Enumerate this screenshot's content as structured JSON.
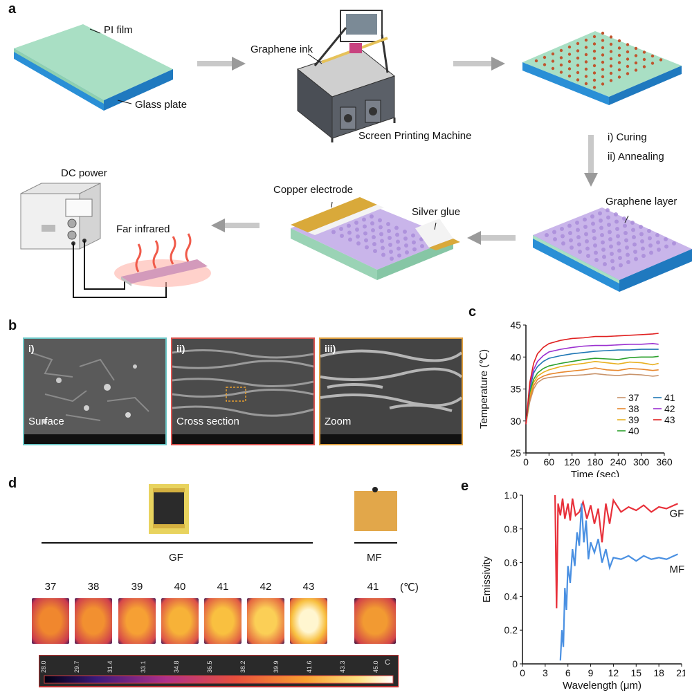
{
  "panels": {
    "a": "a",
    "b": "b",
    "c": "c",
    "d": "d",
    "e": "e"
  },
  "panel_a": {
    "pi_film": "PI film",
    "glass_plate": "Glass plate",
    "graphene_ink": "Graphene ink",
    "machine": "Screen Printing Machine",
    "curing": "i) Curing",
    "annealing": "ii) Annealing",
    "graphene_layer": "Graphene layer",
    "copper_electrode": "Copper electrode",
    "silver_glue": "Silver glue",
    "dc_power": "DC power",
    "far_infrared": "Far infrared"
  },
  "panel_b": {
    "images": [
      {
        "tag": "i)",
        "caption": "Surface",
        "frame": "#6cc7c7"
      },
      {
        "tag": "ii)",
        "caption": "Cross section",
        "frame": "#d9534f"
      },
      {
        "tag": "iii)",
        "caption": "Zoom",
        "frame": "#e0a040"
      }
    ]
  },
  "panel_d": {
    "gf_label": "GF",
    "mf_label": "MF",
    "unit": "(℃)",
    "gf_temps": [
      "37",
      "38",
      "39",
      "40",
      "41",
      "42",
      "43"
    ],
    "mf_temp": "41",
    "colorbar_ticks": [
      "28.0",
      "29.7",
      "31.4",
      "33.1",
      "34.8",
      "36.5",
      "38.2",
      "39.9",
      "41.6",
      "43.3",
      "45.0"
    ],
    "colorbar_unit": "C"
  },
  "chart_data": [
    {
      "type": "line",
      "panel": "c",
      "xlabel": "Time (sec)",
      "ylabel": "Temperature (℃)",
      "xlim": [
        0,
        360
      ],
      "ylim": [
        25,
        45
      ],
      "xticks": [
        "0",
        "60",
        "120",
        "180",
        "240",
        "300",
        "360"
      ],
      "yticks": [
        "25",
        "30",
        "35",
        "40",
        "45"
      ],
      "grid": false,
      "legend": "right",
      "series": [
        {
          "name": "37",
          "color": "#c8936a",
          "x": [
            0,
            10,
            20,
            30,
            45,
            60,
            90,
            120,
            150,
            180,
            210,
            240,
            270,
            300,
            330,
            345
          ],
          "values": [
            29.5,
            33,
            35,
            36,
            36.6,
            36.8,
            37,
            37.1,
            37.2,
            37.4,
            37.2,
            37.1,
            37.3,
            37.2,
            37,
            37.1
          ]
        },
        {
          "name": "38",
          "color": "#e8872c",
          "x": [
            0,
            10,
            20,
            30,
            45,
            60,
            90,
            120,
            150,
            180,
            210,
            240,
            270,
            300,
            330,
            345
          ],
          "values": [
            29.5,
            33.5,
            35.5,
            36.5,
            37,
            37.3,
            37.6,
            37.8,
            38,
            38.3,
            38,
            37.9,
            38.2,
            38.1,
            37.9,
            38
          ]
        },
        {
          "name": "39",
          "color": "#e8b020",
          "x": [
            0,
            10,
            20,
            30,
            45,
            60,
            90,
            120,
            150,
            180,
            210,
            240,
            270,
            300,
            330,
            345
          ],
          "values": [
            29.5,
            34,
            36,
            37,
            37.6,
            38,
            38.5,
            38.8,
            39,
            39.3,
            39.1,
            38.9,
            39.2,
            39.1,
            38.8,
            39
          ]
        },
        {
          "name": "40",
          "color": "#2ca02c",
          "x": [
            0,
            10,
            20,
            30,
            45,
            60,
            90,
            120,
            150,
            180,
            210,
            240,
            270,
            300,
            330,
            345
          ],
          "values": [
            29.5,
            34.5,
            36.5,
            37.5,
            38.2,
            38.6,
            39,
            39.3,
            39.6,
            39.8,
            39.7,
            39.6,
            39.9,
            40,
            40,
            40.1
          ]
        },
        {
          "name": "41",
          "color": "#1f77b4",
          "x": [
            0,
            10,
            20,
            30,
            45,
            60,
            90,
            120,
            150,
            180,
            210,
            240,
            270,
            300,
            330,
            345
          ],
          "values": [
            29.5,
            35,
            37.5,
            38.5,
            39.3,
            39.8,
            40.2,
            40.5,
            40.7,
            40.9,
            41,
            41.1,
            41.1,
            41.2,
            41.2,
            41.2
          ]
        },
        {
          "name": "42",
          "color": "#9b30d0",
          "x": [
            0,
            10,
            20,
            30,
            45,
            60,
            90,
            120,
            150,
            180,
            210,
            240,
            270,
            300,
            330,
            345
          ],
          "values": [
            29.5,
            35.5,
            38,
            39.3,
            40.2,
            40.8,
            41.2,
            41.5,
            41.7,
            41.8,
            41.8,
            41.9,
            42,
            42,
            42.1,
            42
          ]
        },
        {
          "name": "43",
          "color": "#e02020",
          "x": [
            0,
            10,
            20,
            30,
            45,
            60,
            90,
            120,
            150,
            180,
            210,
            240,
            270,
            300,
            330,
            345
          ],
          "values": [
            29.5,
            36,
            39,
            40.5,
            41.5,
            42.1,
            42.6,
            42.9,
            43,
            43.2,
            43.2,
            43.3,
            43.4,
            43.5,
            43.6,
            43.7
          ]
        }
      ]
    },
    {
      "type": "line",
      "panel": "e",
      "xlabel": "Wavelength (μm)",
      "ylabel": "Emissivity",
      "xlim": [
        0,
        21
      ],
      "ylim": [
        0,
        1
      ],
      "xticks": [
        "0",
        "3",
        "6",
        "9",
        "12",
        "15",
        "18",
        "21"
      ],
      "yticks": [
        "0",
        "0.2",
        "0.4",
        "0.6",
        "0.8",
        "1.0"
      ],
      "grid": false,
      "series": [
        {
          "name": "GF",
          "color": "#e8303a",
          "x": [
            4.3,
            4.5,
            4.7,
            5.0,
            5.3,
            5.6,
            6.0,
            6.3,
            6.6,
            7.0,
            7.5,
            8.0,
            8.5,
            9.0,
            9.5,
            10,
            10.5,
            11,
            11.5,
            12,
            13,
            14,
            15,
            16,
            17,
            18,
            19,
            20,
            20.5
          ],
          "values": [
            1.0,
            0.33,
            0.95,
            0.88,
            0.98,
            0.86,
            0.95,
            0.85,
            0.98,
            0.88,
            0.9,
            0.96,
            0.86,
            0.94,
            0.83,
            0.92,
            0.72,
            0.95,
            0.83,
            0.97,
            0.9,
            0.93,
            0.91,
            0.94,
            0.9,
            0.93,
            0.92,
            0.94,
            0.95
          ]
        },
        {
          "name": "MF",
          "color": "#4a90e2",
          "x": [
            5.0,
            5.2,
            5.4,
            5.6,
            5.8,
            6.0,
            6.3,
            6.6,
            6.9,
            7.2,
            7.5,
            7.8,
            8.1,
            8.4,
            8.7,
            9.0,
            9.5,
            10,
            10.5,
            11,
            11.5,
            12,
            13,
            14,
            15,
            16,
            17,
            18,
            19,
            20,
            20.5
          ],
          "values": [
            0.02,
            0.2,
            0.1,
            0.45,
            0.32,
            0.58,
            0.48,
            0.68,
            0.58,
            0.78,
            0.7,
            0.95,
            0.72,
            0.85,
            0.62,
            0.72,
            0.66,
            0.74,
            0.6,
            0.68,
            0.57,
            0.63,
            0.62,
            0.64,
            0.61,
            0.64,
            0.62,
            0.63,
            0.62,
            0.64,
            0.65
          ]
        }
      ]
    }
  ]
}
